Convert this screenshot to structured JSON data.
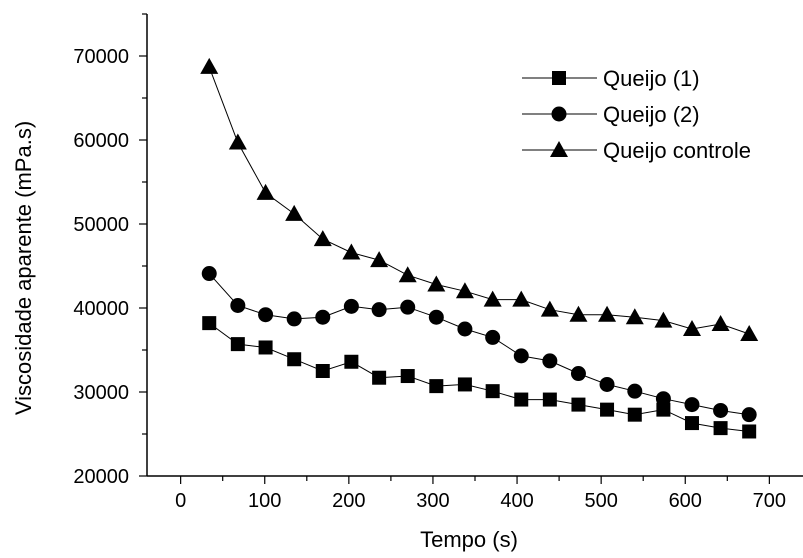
{
  "chart_data": {
    "type": "line",
    "title": "",
    "xlabel": "Tempo (s)",
    "ylabel": "Viscosidade aparente (mPa.s)",
    "xlim": [
      -40,
      740
    ],
    "ylim": [
      20000,
      75000
    ],
    "x_ticks": [
      0,
      100,
      200,
      300,
      400,
      500,
      600,
      700
    ],
    "y_ticks": [
      20000,
      30000,
      40000,
      50000,
      60000,
      70000
    ],
    "grid": false,
    "legend_position": "top-right",
    "series": [
      {
        "name": "Queijo (1)",
        "marker": "square",
        "color": "#000000",
        "x": [
          34,
          68,
          101,
          135,
          169,
          203,
          236,
          270,
          304,
          338,
          371,
          405,
          439,
          473,
          507,
          540,
          574,
          608,
          642,
          676
        ],
        "y": [
          38200,
          35700,
          35300,
          33900,
          32500,
          33600,
          31700,
          31900,
          30700,
          30900,
          30100,
          29100,
          29100,
          28500,
          27900,
          27300,
          27900,
          26300,
          25700,
          25300
        ]
      },
      {
        "name": "Queijo (2)",
        "marker": "circle",
        "color": "#000000",
        "x": [
          34,
          68,
          101,
          135,
          169,
          203,
          236,
          270,
          304,
          338,
          371,
          405,
          439,
          473,
          507,
          540,
          574,
          608,
          642,
          676
        ],
        "y": [
          44100,
          40300,
          39200,
          38700,
          38900,
          40200,
          39800,
          40100,
          38900,
          37500,
          36500,
          34300,
          33700,
          32200,
          30900,
          30100,
          29200,
          28500,
          27800,
          27300
        ]
      },
      {
        "name": "Queijo controle",
        "marker": "triangle",
        "color": "#000000",
        "x": [
          34,
          68,
          101,
          135,
          169,
          203,
          236,
          270,
          304,
          338,
          371,
          405,
          439,
          473,
          507,
          540,
          574,
          608,
          642,
          676
        ],
        "y": [
          68700,
          59700,
          53700,
          51200,
          48200,
          46600,
          45700,
          43900,
          42800,
          42000,
          41000,
          41000,
          39800,
          39200,
          39200,
          38900,
          38500,
          37500,
          38100,
          36900
        ]
      }
    ]
  }
}
